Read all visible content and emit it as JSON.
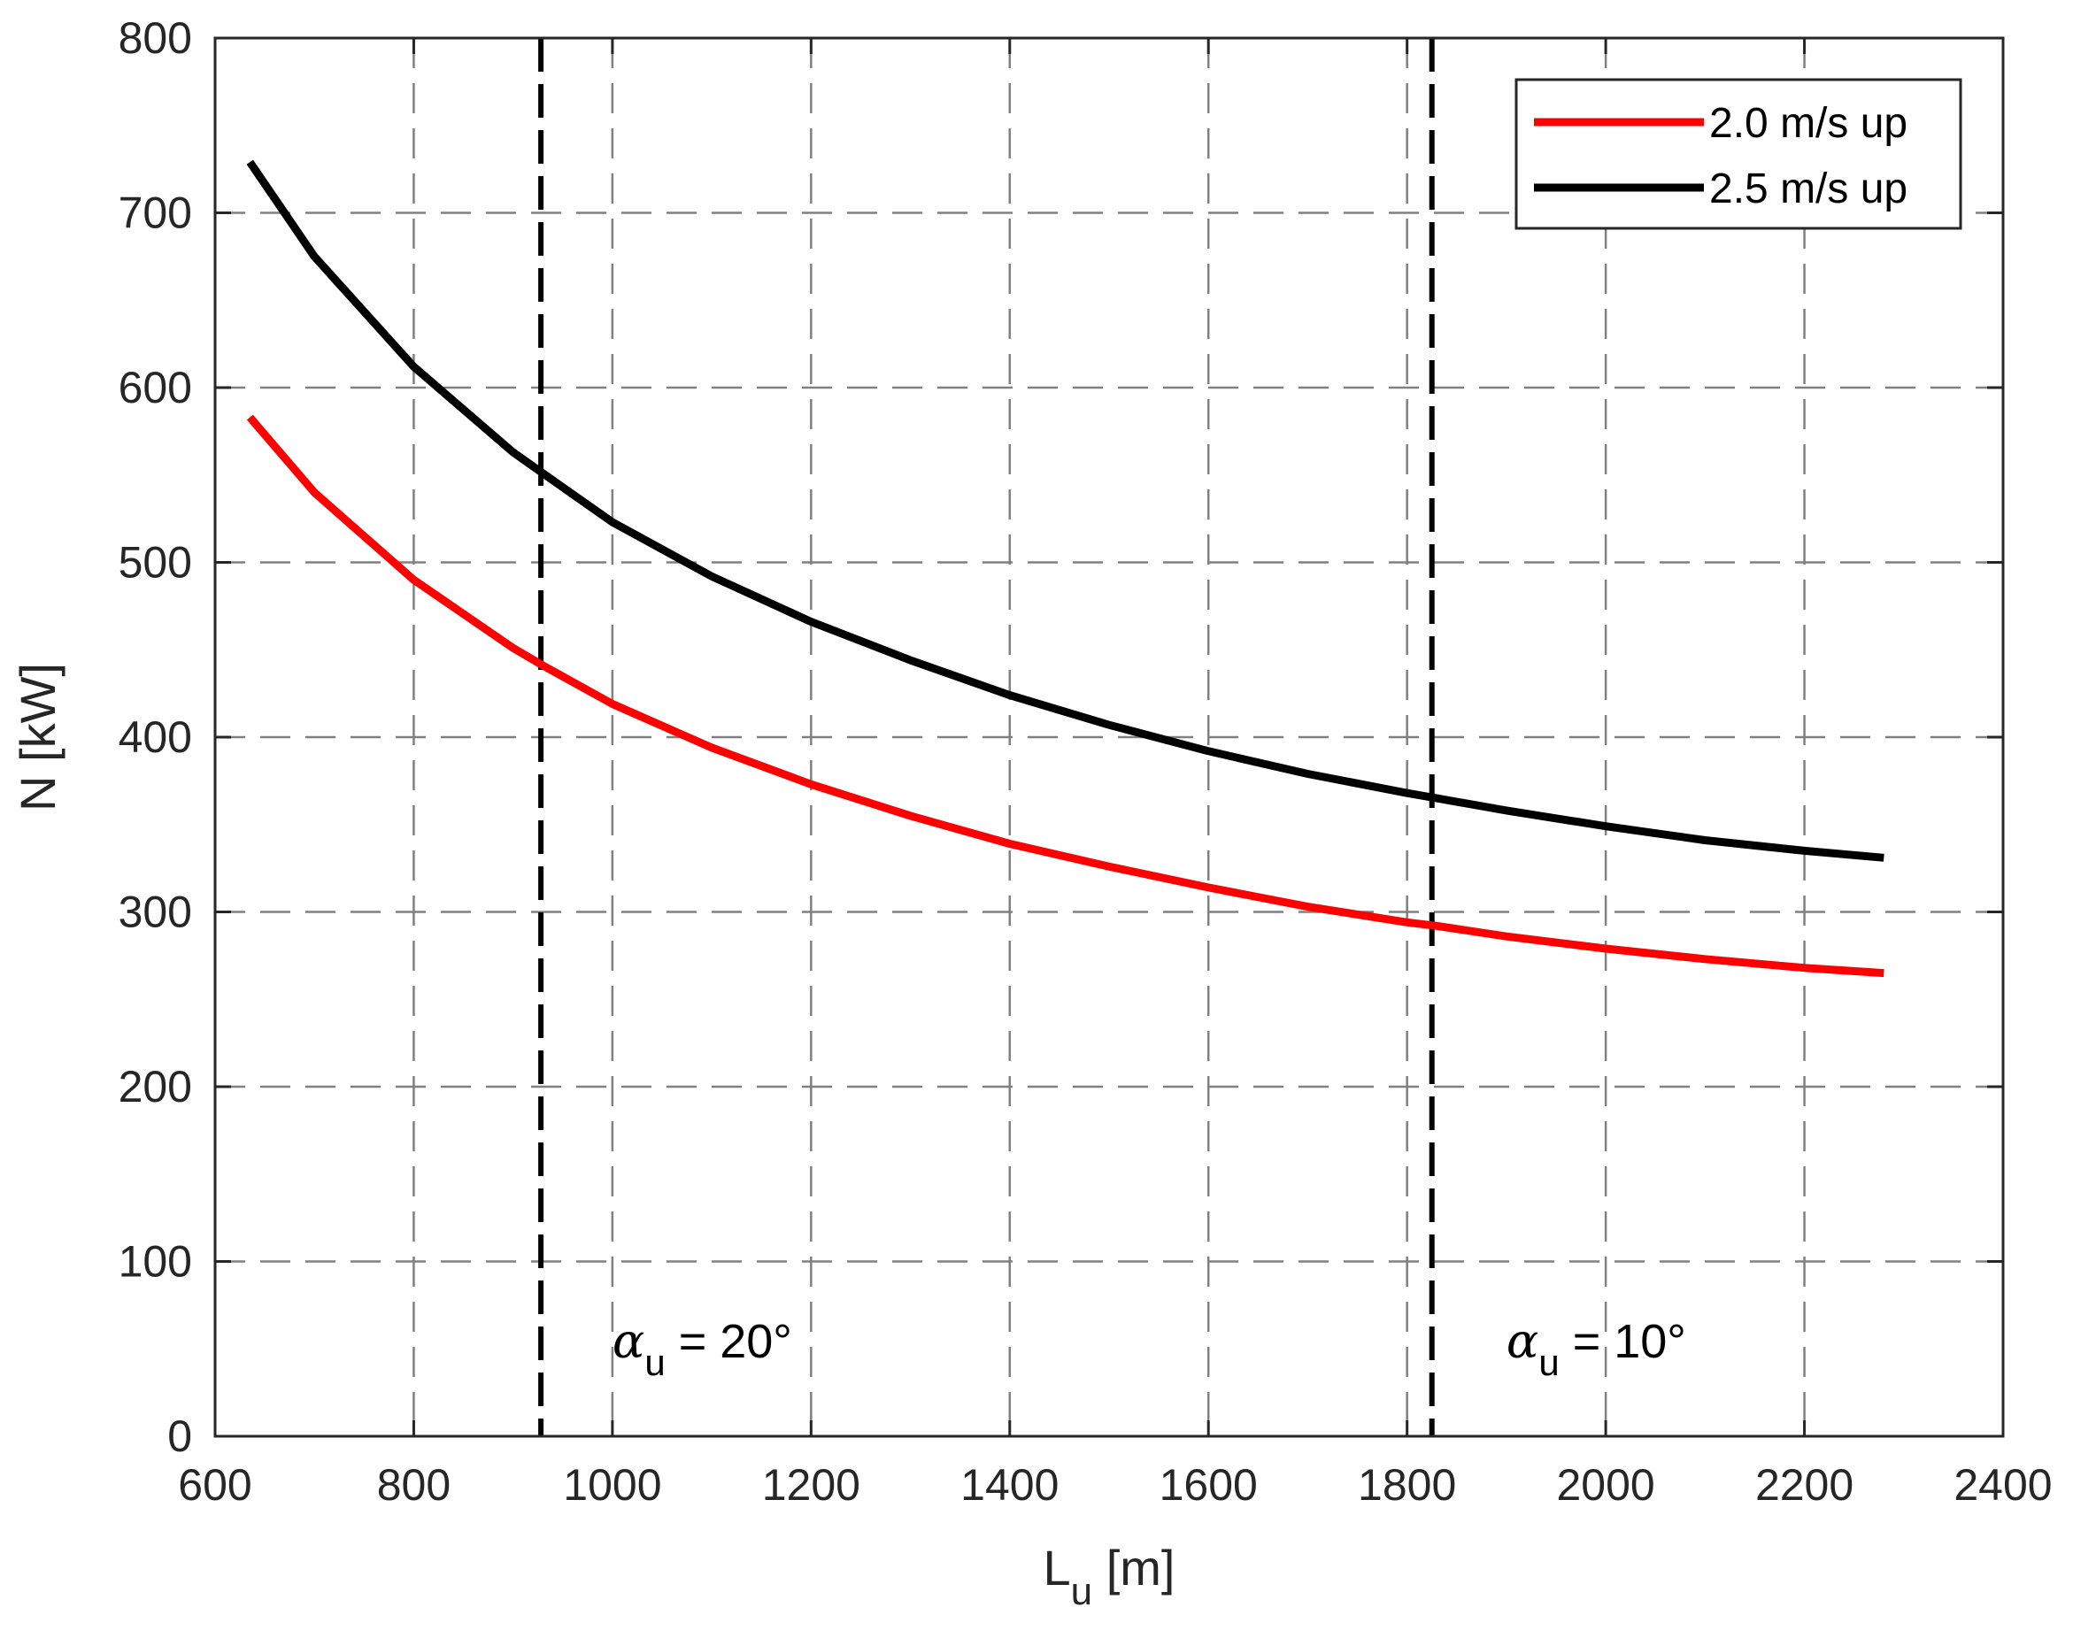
{
  "chart_data": {
    "type": "line",
    "title": "",
    "xlabel_main": "L",
    "xlabel_sub": "u",
    "xlabel_unit": " [m]",
    "ylabel": "N [kW]",
    "xlim": [
      600,
      2400
    ],
    "ylim": [
      0,
      800
    ],
    "xticks": [
      600,
      800,
      1000,
      1200,
      1400,
      1600,
      1800,
      2000,
      2200,
      2400
    ],
    "yticks": [
      0,
      100,
      200,
      300,
      400,
      500,
      600,
      700,
      800
    ],
    "grid": true,
    "grid_style": "dashed",
    "legend_position": "top-right",
    "series": [
      {
        "name": "2.0 m/s up",
        "color": "#ff0000",
        "x": [
          635,
          700,
          800,
          900,
          930,
          1000,
          1100,
          1200,
          1300,
          1400,
          1500,
          1600,
          1700,
          1800,
          1830,
          1900,
          2000,
          2100,
          2200,
          2280
        ],
        "y": [
          583,
          540,
          490,
          451,
          441,
          419,
          394,
          373,
          355,
          339,
          326,
          314,
          303,
          294,
          292,
          286,
          279,
          273,
          268,
          265
        ]
      },
      {
        "name": "2.5 m/s up",
        "color": "#000000",
        "x": [
          635,
          700,
          800,
          900,
          930,
          1000,
          1100,
          1200,
          1300,
          1400,
          1500,
          1600,
          1700,
          1800,
          1830,
          1900,
          2000,
          2100,
          2200,
          2280
        ],
        "y": [
          729,
          675,
          612,
          563,
          551,
          523,
          492,
          466,
          444,
          424,
          407,
          392,
          379,
          368,
          365,
          358,
          349,
          341,
          335,
          331
        ]
      }
    ],
    "vlines": [
      {
        "x": 928,
        "color": "#000000",
        "label_greek": "α",
        "label_sub": "u",
        "label_rest": " = 20°",
        "label_x": 1000,
        "label_y": 45
      },
      {
        "x": 1825,
        "color": "#000000",
        "label_greek": "α",
        "label_sub": "u",
        "label_rest": " = 10°",
        "label_x": 1900,
        "label_y": 45
      }
    ]
  }
}
